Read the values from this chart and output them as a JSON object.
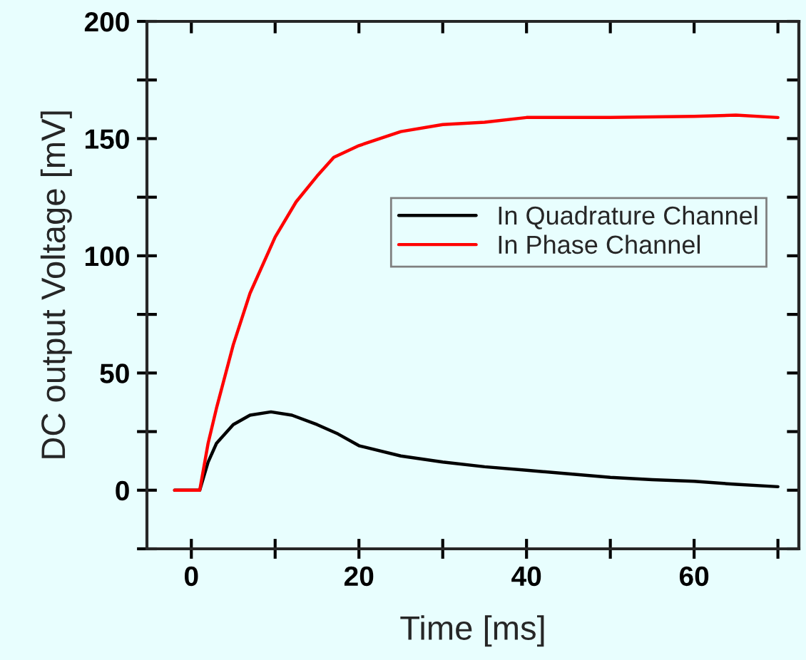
{
  "chart_data": {
    "type": "line",
    "xlabel": "Time [ms]",
    "ylabel": "DC output Voltage [mV]",
    "xlim": [
      -5.3,
      72.5
    ],
    "ylim": [
      -25,
      200
    ],
    "xticks": [
      0,
      {
        "value": 10,
        "label": null
      },
      20,
      {
        "value": 30,
        "label": null
      },
      40,
      {
        "value": 50,
        "label": null
      },
      60,
      {
        "value": 70,
        "label": null
      }
    ],
    "yticks": [
      {
        "value": -25,
        "label": null
      },
      0,
      {
        "value": 25,
        "label": null
      },
      50,
      {
        "value": 75,
        "label": null
      },
      100,
      {
        "value": 125,
        "label": null
      },
      150,
      {
        "value": 175,
        "label": null
      },
      200
    ],
    "grid": false,
    "legend": "right",
    "marker": "none",
    "line_style": "solid",
    "series": [
      {
        "name": "In Quadrature Channel",
        "color": "#000000",
        "x": [
          -2,
          0,
          1,
          2,
          3,
          5,
          7,
          9.5,
          12,
          15,
          17.5,
          20,
          25,
          30,
          35,
          40,
          45,
          50,
          55,
          60,
          65,
          70
        ],
        "values": [
          0,
          0,
          0,
          12,
          20,
          28,
          32,
          33.4,
          32,
          28,
          24,
          19,
          14.6,
          12,
          10,
          8.5,
          7,
          5.5,
          4.5,
          3.8,
          2.5,
          1.5
        ]
      },
      {
        "name": "In Phase Channel",
        "color": "#ff0000",
        "x": [
          -2,
          0,
          1,
          2,
          3,
          5,
          7,
          10,
          12.5,
          15,
          17,
          20,
          25,
          30,
          35,
          40,
          50,
          60,
          65,
          70
        ],
        "values": [
          0,
          0,
          0,
          20,
          35,
          62,
          84,
          108,
          123,
          134,
          142,
          147,
          153,
          156,
          157,
          159,
          159,
          159.5,
          160,
          159
        ]
      }
    ]
  }
}
